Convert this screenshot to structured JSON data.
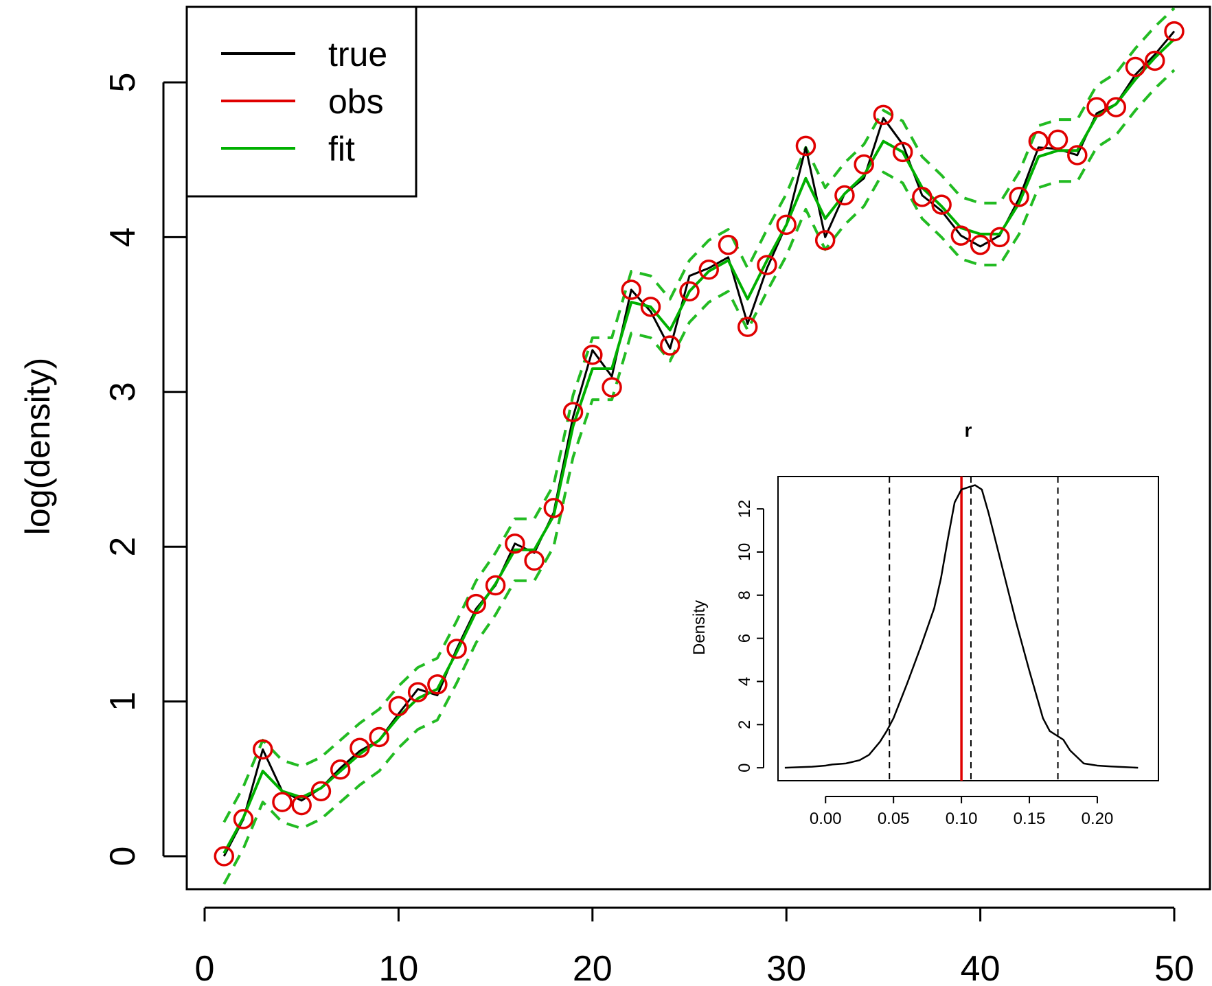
{
  "chart_data": [
    {
      "type": "line",
      "title": "",
      "xlabel": "",
      "ylabel": "log(density)",
      "xlim": [
        0,
        50
      ],
      "ylim": [
        0,
        5
      ],
      "x_ticks": [
        "0",
        "10",
        "20",
        "30",
        "40",
        "50"
      ],
      "y_ticks": [
        "0",
        "1",
        "2",
        "3",
        "4",
        "5"
      ],
      "legend": {
        "position": "top-left",
        "entries": [
          "true",
          "obs",
          "fit"
        ]
      },
      "colors": {
        "true": "#000000",
        "obs": "#e00000",
        "fit": "#00b000",
        "band": "#22bb22"
      },
      "x": [
        1,
        2,
        3,
        4,
        5,
        6,
        7,
        8,
        9,
        10,
        11,
        12,
        13,
        14,
        15,
        16,
        17,
        18,
        19,
        20,
        21,
        22,
        23,
        24,
        25,
        26,
        27,
        28,
        29,
        30,
        31,
        32,
        33,
        34,
        35,
        36,
        37,
        38,
        39,
        40,
        41,
        42,
        43,
        44,
        45,
        46,
        47,
        48,
        49,
        50
      ],
      "series": [
        {
          "name": "true",
          "style": "line",
          "values": [
            0.0,
            0.24,
            0.69,
            0.42,
            0.36,
            0.44,
            0.57,
            0.68,
            0.75,
            0.92,
            1.08,
            1.04,
            1.34,
            1.6,
            1.75,
            2.02,
            1.96,
            2.22,
            2.84,
            3.27,
            3.1,
            3.66,
            3.52,
            3.28,
            3.75,
            3.8,
            3.87,
            3.44,
            3.8,
            4.08,
            4.58,
            4.0,
            4.28,
            4.38,
            4.77,
            4.6,
            4.27,
            4.17,
            4.01,
            3.94,
            4.01,
            4.25,
            4.58,
            4.57,
            4.53,
            4.8,
            4.86,
            5.05,
            5.18,
            5.33
          ]
        },
        {
          "name": "obs",
          "style": "points",
          "values": [
            0.0,
            0.24,
            0.69,
            0.35,
            0.33,
            0.42,
            0.56,
            0.7,
            0.77,
            0.97,
            1.06,
            1.11,
            1.34,
            1.63,
            1.75,
            2.02,
            1.91,
            2.25,
            2.87,
            3.24,
            3.03,
            3.66,
            3.55,
            3.3,
            3.65,
            3.79,
            3.95,
            3.42,
            3.82,
            4.08,
            4.59,
            3.98,
            4.27,
            4.47,
            4.79,
            4.55,
            4.26,
            4.21,
            4.01,
            3.95,
            4.0,
            4.26,
            4.62,
            4.63,
            4.53,
            4.84,
            4.84,
            5.1,
            5.14,
            5.33
          ]
        },
        {
          "name": "fit",
          "style": "line",
          "values": [
            0.02,
            0.25,
            0.55,
            0.42,
            0.38,
            0.44,
            0.55,
            0.66,
            0.75,
            0.9,
            1.02,
            1.08,
            1.32,
            1.58,
            1.76,
            1.98,
            1.98,
            2.2,
            2.78,
            3.15,
            3.15,
            3.58,
            3.55,
            3.4,
            3.65,
            3.78,
            3.85,
            3.6,
            3.85,
            4.08,
            4.38,
            4.12,
            4.28,
            4.4,
            4.62,
            4.55,
            4.32,
            4.2,
            4.06,
            4.02,
            4.02,
            4.22,
            4.52,
            4.56,
            4.56,
            4.78,
            4.86,
            5.02,
            5.16,
            5.28
          ]
        },
        {
          "name": "fit-upper",
          "style": "dashed",
          "values": [
            0.22,
            0.45,
            0.75,
            0.62,
            0.58,
            0.64,
            0.75,
            0.86,
            0.95,
            1.1,
            1.22,
            1.28,
            1.52,
            1.78,
            1.96,
            2.18,
            2.18,
            2.4,
            2.98,
            3.35,
            3.35,
            3.78,
            3.75,
            3.6,
            3.85,
            3.98,
            4.05,
            3.8,
            4.05,
            4.28,
            4.58,
            4.32,
            4.48,
            4.6,
            4.82,
            4.75,
            4.52,
            4.4,
            4.26,
            4.22,
            4.22,
            4.42,
            4.72,
            4.76,
            4.76,
            4.98,
            5.06,
            5.22,
            5.36,
            5.48
          ]
        },
        {
          "name": "fit-lower",
          "style": "dashed",
          "values": [
            -0.18,
            0.05,
            0.35,
            0.22,
            0.18,
            0.24,
            0.35,
            0.46,
            0.55,
            0.7,
            0.82,
            0.88,
            1.12,
            1.38,
            1.56,
            1.78,
            1.78,
            2.0,
            2.58,
            2.95,
            2.95,
            3.38,
            3.35,
            3.2,
            3.45,
            3.58,
            3.65,
            3.4,
            3.65,
            3.88,
            4.18,
            3.92,
            4.08,
            4.2,
            4.42,
            4.35,
            4.12,
            4.0,
            3.86,
            3.82,
            3.82,
            4.02,
            4.32,
            4.36,
            4.36,
            4.58,
            4.66,
            4.82,
            4.96,
            5.08
          ]
        }
      ]
    },
    {
      "type": "line",
      "title": "r",
      "xlabel": "",
      "ylabel": "Density",
      "xlim": [
        -0.035,
        0.245
      ],
      "ylim": [
        -0.6,
        13.5
      ],
      "x_ticks": [
        "0.00",
        "0.05",
        "0.10",
        "0.15",
        "0.20"
      ],
      "y_ticks": [
        "0",
        "2",
        "4",
        "6",
        "8",
        "10",
        "12"
      ],
      "colors": {
        "density": "#000000",
        "true_value": "#e00000",
        "quantiles": "#000000"
      },
      "density": {
        "x": [
          -0.03,
          -0.01,
          0.0,
          0.005,
          0.015,
          0.025,
          0.032,
          0.04,
          0.045,
          0.05,
          0.06,
          0.07,
          0.08,
          0.085,
          0.09,
          0.095,
          0.1,
          0.105,
          0.11,
          0.115,
          0.12,
          0.13,
          0.14,
          0.15,
          0.16,
          0.165,
          0.17,
          0.175,
          0.18,
          0.19,
          0.2,
          0.21,
          0.23
        ],
        "y": [
          0.0,
          0.05,
          0.1,
          0.15,
          0.2,
          0.35,
          0.6,
          1.2,
          1.7,
          2.3,
          3.9,
          5.6,
          7.4,
          8.8,
          10.6,
          12.3,
          12.9,
          13.0,
          13.1,
          12.9,
          11.8,
          9.3,
          6.8,
          4.5,
          2.3,
          1.7,
          1.5,
          1.3,
          0.8,
          0.2,
          0.1,
          0.06,
          0.0
        ]
      },
      "true_value": 0.1,
      "quantiles": [
        0.047,
        0.107,
        0.171
      ]
    }
  ]
}
